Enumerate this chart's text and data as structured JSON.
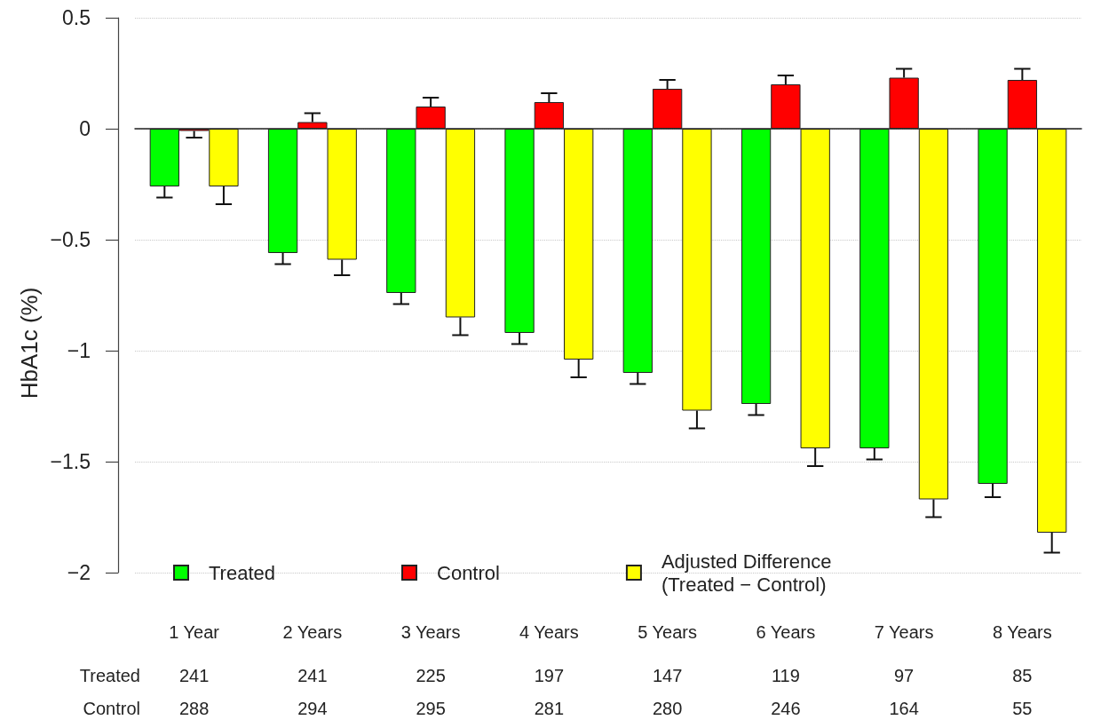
{
  "chart_data": {
    "type": "bar",
    "ylabel": "HbA1c (%)",
    "categories": [
      "1 Year",
      "2 Years",
      "3 Years",
      "4 Years",
      "5 Years",
      "6 Years",
      "7 Years",
      "8 Years"
    ],
    "series": [
      {
        "name": "Treated",
        "color": "#00ff00",
        "values": [
          -0.26,
          -0.56,
          -0.74,
          -0.92,
          -1.1,
          -1.24,
          -1.44,
          -1.6
        ],
        "errors": [
          [
            -0.31,
            -0.26
          ],
          [
            -0.61,
            -0.56
          ],
          [
            -0.79,
            -0.74
          ],
          [
            -0.97,
            -0.92
          ],
          [
            -1.15,
            -1.1
          ],
          [
            -1.29,
            -1.24
          ],
          [
            -1.49,
            -1.44
          ],
          [
            -1.66,
            -1.6
          ]
        ]
      },
      {
        "name": "Control",
        "color": "#ff0000",
        "values": [
          -0.01,
          0.03,
          0.1,
          0.12,
          0.18,
          0.2,
          0.23,
          0.22
        ],
        "errors": [
          [
            -0.04,
            -0.01
          ],
          [
            0.03,
            0.07
          ],
          [
            0.1,
            0.14
          ],
          [
            0.12,
            0.16
          ],
          [
            0.18,
            0.22
          ],
          [
            0.2,
            0.24
          ],
          [
            0.23,
            0.27
          ],
          [
            0.22,
            0.27
          ]
        ]
      },
      {
        "name": "Adjusted Difference\n(Treated − Control)",
        "color": "#ffff00",
        "values": [
          -0.26,
          -0.59,
          -0.85,
          -1.04,
          -1.27,
          -1.44,
          -1.67,
          -1.82
        ],
        "errors": [
          [
            -0.34,
            -0.26
          ],
          [
            -0.66,
            -0.59
          ],
          [
            -0.93,
            -0.85
          ],
          [
            -1.12,
            -1.04
          ],
          [
            -1.35,
            -1.27
          ],
          [
            -1.52,
            -1.44
          ],
          [
            -1.75,
            -1.67
          ],
          [
            -1.91,
            -1.82
          ]
        ]
      }
    ],
    "ylim": [
      -2,
      0.5
    ],
    "yticks": [
      0.5,
      0,
      {
        "value": -0.5,
        "label": "−0.5"
      },
      {
        "value": -1,
        "label": "−1"
      },
      {
        "value": -1.5,
        "label": "−1.5"
      },
      {
        "value": -2,
        "label": "−2"
      }
    ],
    "grid": "y",
    "legend": "bottom",
    "annotations": [
      "Treated",
      "241",
      "241",
      "225",
      "197",
      "147",
      "119",
      "97",
      "85",
      "Control",
      "288",
      "294",
      "295",
      "281",
      "280",
      "246",
      "164",
      "55"
    ]
  }
}
